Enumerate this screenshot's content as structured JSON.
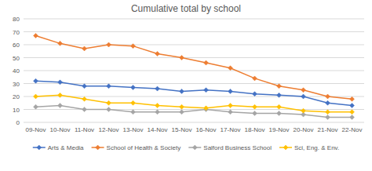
{
  "chart_data": {
    "type": "line",
    "title": "Cumulative total by school",
    "categories": [
      "09-Nov",
      "10-Nov",
      "11-Nov",
      "12-Nov",
      "13-Nov",
      "14-Nov",
      "15-Nov",
      "16-Nov",
      "17-Nov",
      "18-Nov",
      "19-Nov",
      "20-Nov",
      "21-Nov",
      "22-Nov"
    ],
    "series": [
      {
        "name": "Arts & Media",
        "color": "#4472C4",
        "marker": "diamond",
        "values": [
          32,
          31,
          28,
          28,
          27,
          26,
          24,
          25,
          24,
          22,
          21,
          20,
          15,
          13
        ]
      },
      {
        "name": "School of Health & Society",
        "color": "#ED7D31",
        "marker": "diamond",
        "values": [
          67,
          61,
          57,
          60,
          59,
          53,
          50,
          46,
          42,
          34,
          28,
          25,
          20,
          18
        ]
      },
      {
        "name": "Salford Business School",
        "color": "#A5A5A5",
        "marker": "diamond",
        "values": [
          12,
          13,
          10,
          10,
          8,
          8,
          8,
          10,
          8,
          7,
          7,
          6,
          4,
          4
        ]
      },
      {
        "name": "Sci, Eng. & Env.",
        "color": "#FFC000",
        "marker": "diamond",
        "values": [
          20,
          21,
          18,
          15,
          15,
          13,
          12,
          11,
          13,
          12,
          12,
          9,
          8,
          8
        ]
      }
    ],
    "ylim": [
      0,
      80
    ],
    "yticks": [
      0,
      10,
      20,
      30,
      40,
      50,
      60,
      70,
      80
    ],
    "grid": true,
    "legend": "bottom"
  }
}
